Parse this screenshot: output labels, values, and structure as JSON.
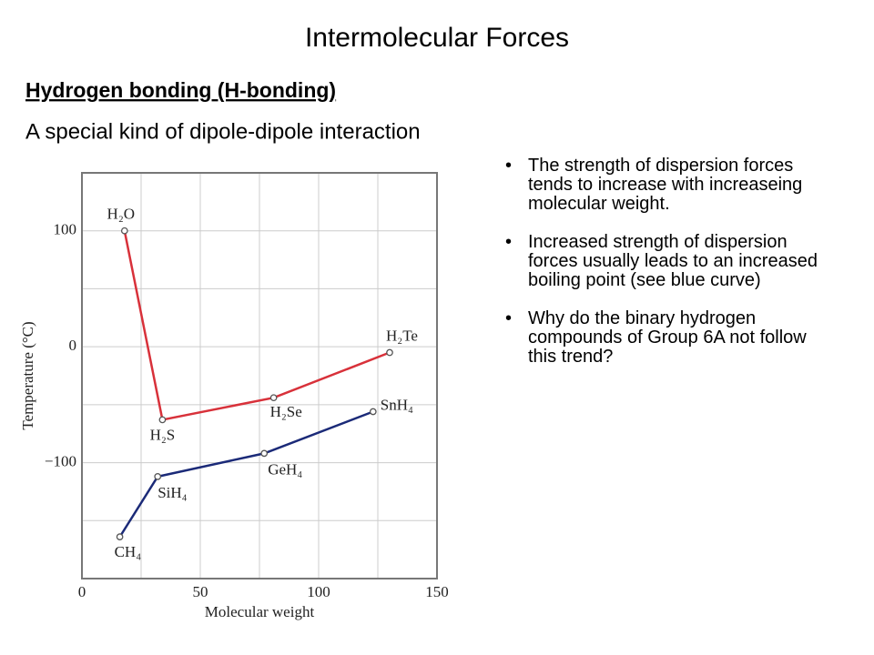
{
  "title": "Intermolecular Forces",
  "heading": "Hydrogen bonding (H-bonding)",
  "subheading": "A special kind of dipole-dipole interaction",
  "bullets": [
    "The strength of dispersion forces tends to increase with increaseing molecular weight.",
    "Increased strength of dispersion forces usually leads to an increased boiling point (see blue curve)",
    "Why do the binary hydrogen compounds of Group 6A not follow this trend?"
  ],
  "chart_data": {
    "type": "line",
    "xlabel": "Molecular weight",
    "ylabel": "Temperature (°C)",
    "xlim": [
      0,
      150
    ],
    "xticks": [
      0,
      50,
      100,
      150
    ],
    "xminor": [
      25,
      75,
      125
    ],
    "ylim": [
      -200,
      150
    ],
    "yticks": [
      {
        "value": -100,
        "label": "−100"
      },
      0,
      100
    ],
    "yminor": [
      -150,
      -50,
      50
    ],
    "grid": true,
    "series": [
      {
        "color": "#d8313a",
        "x": [
          18,
          34,
          81,
          130
        ],
        "values": [
          100,
          -63,
          -44,
          -5
        ],
        "point_labels": [
          "H₂O",
          "H₂S",
          "H₂Se",
          "H₂Te"
        ]
      },
      {
        "color": "#1b2a78",
        "x": [
          16,
          32,
          77,
          123
        ],
        "values": [
          -164,
          -112,
          -92,
          -56
        ],
        "point_labels": [
          "CH₄",
          "SiH₄",
          "GeH₄",
          "SnH₄"
        ]
      }
    ]
  }
}
